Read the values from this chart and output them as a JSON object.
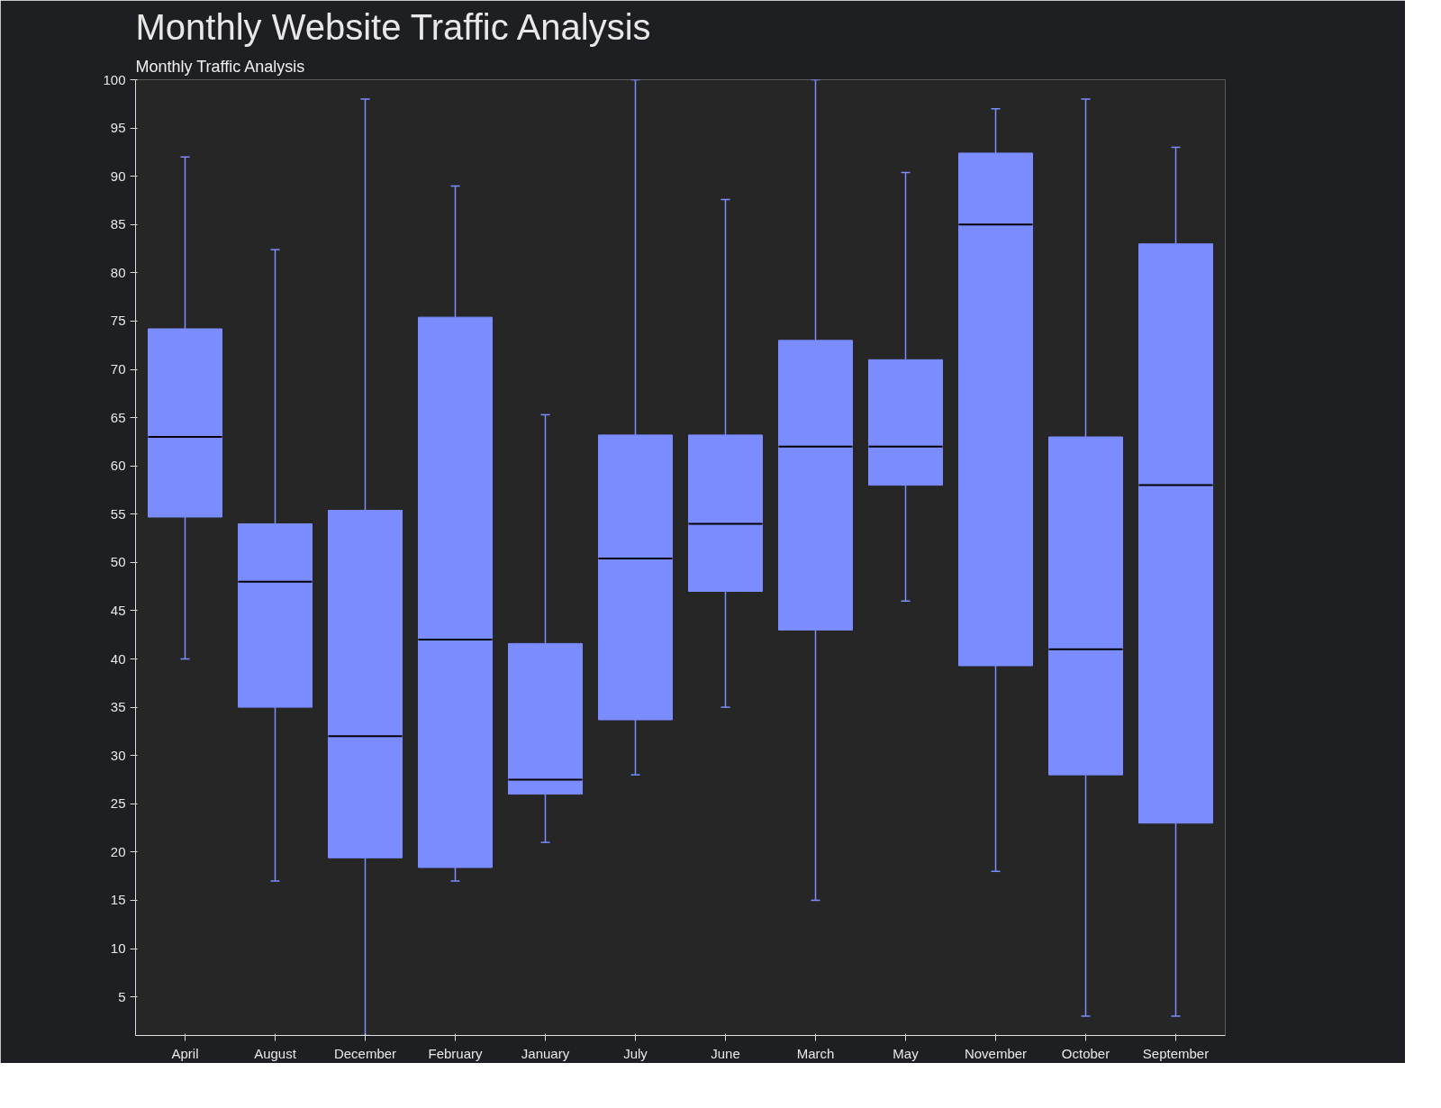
{
  "chart_data": {
    "type": "box",
    "title": "Monthly Website Traffic Analysis",
    "subtitle": "Monthly Traffic Analysis",
    "categories": [
      "April",
      "August",
      "December",
      "February",
      "January",
      "July",
      "June",
      "March",
      "May",
      "November",
      "October",
      "September"
    ],
    "color": "#7b8cff",
    "boxes": [
      {
        "low": 40,
        "q1": 54.7,
        "median": 63,
        "q3": 74.2,
        "high": 92
      },
      {
        "low": 17,
        "q1": 35,
        "median": 48,
        "q3": 54,
        "high": 82.4
      },
      {
        "low": 1,
        "q1": 19.4,
        "median": 32,
        "q3": 55.4,
        "high": 98
      },
      {
        "low": 17,
        "q1": 18.4,
        "median": 42,
        "q3": 75.4,
        "high": 89
      },
      {
        "low": 21,
        "q1": 26,
        "median": 27.5,
        "q3": 41.6,
        "high": 65.3
      },
      {
        "low": 28,
        "q1": 33.7,
        "median": 50.4,
        "q3": 63.2,
        "high": 100
      },
      {
        "low": 35,
        "q1": 47,
        "median": 54,
        "q3": 63.2,
        "high": 87.6
      },
      {
        "low": 15,
        "q1": 43,
        "median": 62,
        "q3": 73,
        "high": 100
      },
      {
        "low": 46,
        "q1": 58,
        "median": 62,
        "q3": 71,
        "high": 90.4
      },
      {
        "low": 18,
        "q1": 39.3,
        "median": 85,
        "q3": 92.4,
        "high": 97
      },
      {
        "low": 3,
        "q1": 28,
        "median": 41,
        "q3": 63,
        "high": 98
      },
      {
        "low": 3,
        "q1": 23,
        "median": 58,
        "q3": 83,
        "high": 93
      }
    ],
    "ylim": [
      1,
      100
    ],
    "yticks": [
      5,
      10,
      15,
      20,
      25,
      30,
      35,
      40,
      45,
      50,
      55,
      60,
      65,
      70,
      75,
      80,
      85,
      90,
      95,
      100
    ],
    "grid": false
  }
}
